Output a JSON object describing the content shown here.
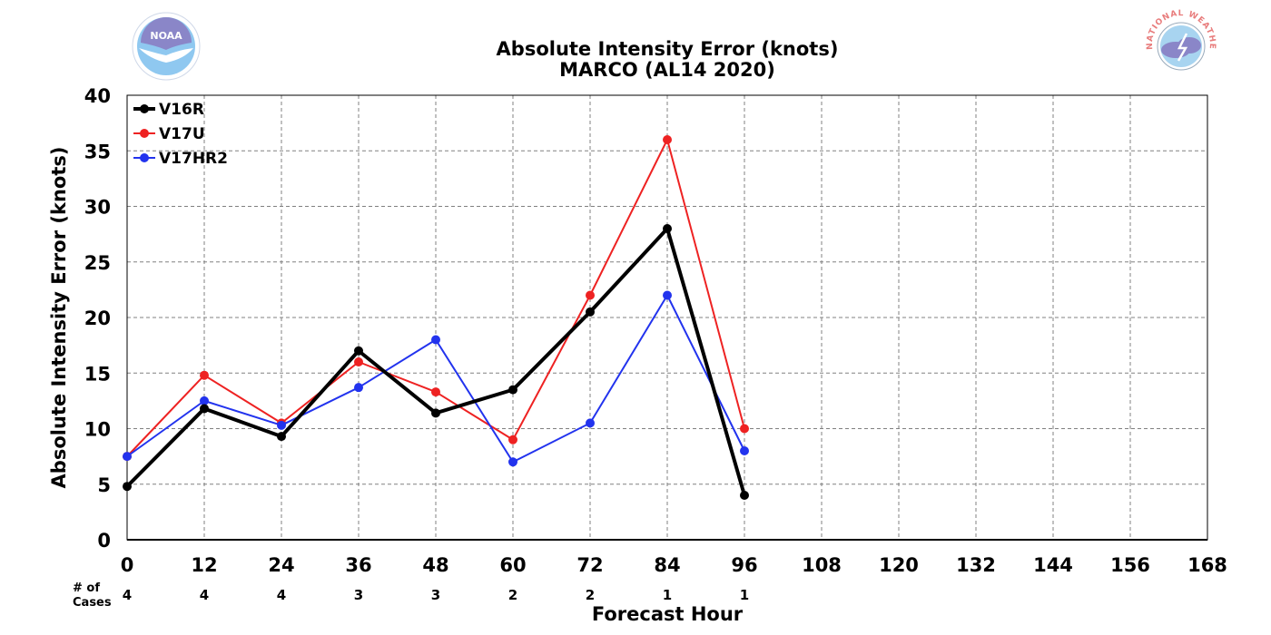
{
  "logos": {
    "left": {
      "text": "NOAA",
      "color": "#7fb3e6",
      "icon": "noaa-logo-icon"
    },
    "right": {
      "text": "NATIONAL WEATHER SERVICE",
      "color": "#e87c7c",
      "icon": "nws-logo-icon"
    }
  },
  "chart_data": {
    "type": "line",
    "title": "Absolute Intensity Error (knots)",
    "subtitle": "MARCO (AL14 2020)",
    "xlabel": "Forecast Hour",
    "ylabel": "Absolute Intensity Error (knots)",
    "xlim": [
      0,
      168
    ],
    "ylim": [
      0,
      40
    ],
    "xticks": [
      0,
      12,
      24,
      36,
      48,
      60,
      72,
      84,
      96,
      108,
      120,
      132,
      144,
      156,
      168
    ],
    "yticks": [
      0,
      5,
      10,
      15,
      20,
      25,
      30,
      35,
      40
    ],
    "grid": true,
    "legend_position": "top-left",
    "x": [
      0,
      12,
      24,
      36,
      48,
      60,
      72,
      84,
      96
    ],
    "series": [
      {
        "name": "V16R",
        "color": "#000000",
        "width": 4,
        "values": [
          4.8,
          11.8,
          9.3,
          17.0,
          11.4,
          13.5,
          20.5,
          28.0,
          4.0
        ]
      },
      {
        "name": "V17U",
        "color": "#ee2222",
        "width": 2,
        "values": [
          7.5,
          14.8,
          10.5,
          16.0,
          13.3,
          9.0,
          22.0,
          36.0,
          10.0
        ]
      },
      {
        "name": "V17HR2",
        "color": "#2233ee",
        "width": 2,
        "values": [
          7.5,
          12.5,
          10.3,
          13.7,
          18.0,
          7.0,
          10.5,
          22.0,
          8.0
        ]
      }
    ],
    "cases": {
      "label_line1": "# of",
      "label_line2": "Cases",
      "x": [
        0,
        12,
        24,
        36,
        48,
        60,
        72,
        84,
        96
      ],
      "values": [
        "4",
        "4",
        "4",
        "3",
        "3",
        "2",
        "2",
        "1",
        "1"
      ]
    }
  }
}
